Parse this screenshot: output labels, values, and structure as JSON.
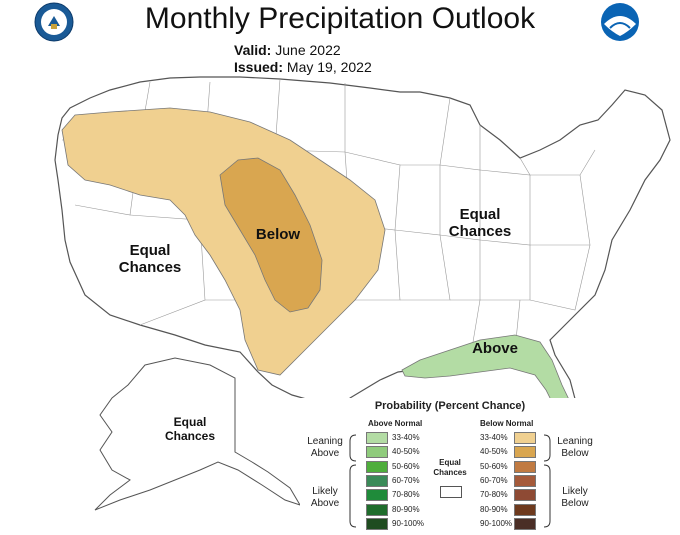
{
  "header": {
    "title": "Monthly Precipitation Outlook",
    "valid_label": "Valid:",
    "valid_value": "June 2022",
    "issued_label": "Issued:",
    "issued_value": "May 19, 2022"
  },
  "regions": {
    "west_equal": [
      "Equal",
      "Chances"
    ],
    "east_equal": [
      "Equal",
      "Chances"
    ],
    "alaska_equal": [
      "Equal",
      "Chances"
    ],
    "below": "Below",
    "above": "Above"
  },
  "legend": {
    "title": "Probability (Percent Chance)",
    "above_header": "Above Normal",
    "below_header": "Below Normal",
    "leaning_above": [
      "Leaning",
      "Above"
    ],
    "likely_above": [
      "Likely",
      "Above"
    ],
    "leaning_below": [
      "Leaning",
      "Below"
    ],
    "likely_below": [
      "Likely",
      "Below"
    ],
    "equal": [
      "Equal",
      "Chances"
    ],
    "above_levels": [
      "33-40%",
      "40-50%",
      "50-60%",
      "60-70%",
      "70-80%",
      "80-90%",
      "90-100%"
    ],
    "below_levels": [
      "33-40%",
      "40-50%",
      "50-60%",
      "60-70%",
      "70-80%",
      "80-90%",
      "90-100%"
    ],
    "above_colors": [
      "#b3dca4",
      "#8fcb7c",
      "#4fae3c",
      "#3a8a58",
      "#1f8b3a",
      "#1f6d2c",
      "#1f4c20"
    ],
    "below_colors": [
      "#f0d090",
      "#d9a650",
      "#c07a42",
      "#a55a3a",
      "#8e4a34",
      "#6e3a1e",
      "#4a2e26"
    ]
  },
  "colors": {
    "leaning_below_fill": "#f0d090",
    "below_40_50_fill": "#d9a650",
    "leaning_above_fill": "#b3dca4"
  },
  "logos": {
    "left": "noaa-commerce-seal",
    "right": "noaa-logo"
  }
}
